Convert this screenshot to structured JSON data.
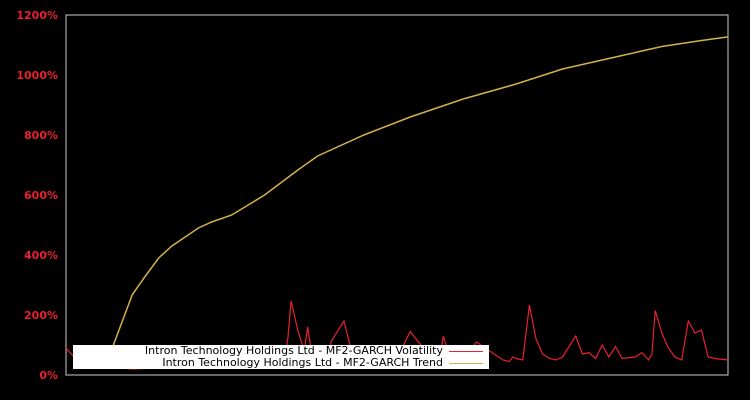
{
  "chart_data": {
    "type": "line",
    "title": "",
    "xlabel": "",
    "ylabel": "",
    "ylim": [
      0,
      1200
    ],
    "yticks": [
      "0%",
      "200%",
      "400%",
      "600%",
      "800%",
      "1000%",
      "1200%"
    ],
    "grid": false,
    "legend_position": "lower center",
    "background": "#000000",
    "axis_color": "#cccccc",
    "tick_label_color": "#e8202f",
    "series": [
      {
        "name": "Intron Technology Holdings Ltd - MF2-GARCH Volatility",
        "color": "#e8202f",
        "x": [
          0,
          0.02,
          0.05,
          0.1,
          0.15,
          0.2,
          0.25,
          0.3,
          0.33,
          0.335,
          0.34,
          0.35,
          0.36,
          0.365,
          0.37,
          0.38,
          0.39,
          0.4,
          0.4,
          0.42,
          0.43,
          0.44,
          0.45,
          0.47,
          0.48,
          0.49,
          0.5,
          0.52,
          0.55,
          0.56,
          0.565,
          0.57,
          0.58,
          0.59,
          0.6,
          0.62,
          0.66,
          0.67,
          0.675,
          0.68,
          0.69,
          0.7,
          0.71,
          0.72,
          0.73,
          0.74,
          0.75,
          0.77,
          0.78,
          0.79,
          0.8,
          0.81,
          0.82,
          0.83,
          0.84,
          0.86,
          0.87,
          0.88,
          0.885,
          0.89,
          0.9,
          0.91,
          0.92,
          0.93,
          0.94,
          0.95,
          0.96,
          0.97,
          0.98,
          1.0
        ],
        "values": [
          90,
          40,
          30,
          20,
          25,
          30,
          35,
          40,
          60,
          120,
          247,
          150,
          80,
          160,
          90,
          50,
          45,
          55,
          110,
          180,
          90,
          60,
          50,
          45,
          50,
          60,
          55,
          145,
          60,
          50,
          55,
          130,
          60,
          50,
          55,
          110,
          50,
          45,
          60,
          55,
          50,
          233,
          120,
          70,
          55,
          50,
          60,
          130,
          70,
          75,
          55,
          100,
          60,
          95,
          55,
          60,
          75,
          50,
          70,
          215,
          140,
          90,
          60,
          50,
          180,
          140,
          150,
          60,
          55,
          50
        ]
      },
      {
        "name": "Intron Technology Holdings Ltd - MF2-GARCH Trend",
        "color": "#d4b04a",
        "x": [
          0.07,
          0.08,
          0.1,
          0.12,
          0.14,
          0.16,
          0.2,
          0.22,
          0.25,
          0.3,
          0.35,
          0.38,
          0.45,
          0.52,
          0.6,
          0.68,
          0.75,
          0.83,
          0.9,
          0.96,
          1.0
        ],
        "values": [
          90,
          150,
          267,
          330,
          390,
          430,
          490,
          510,
          533,
          600,
          683,
          730,
          800,
          860,
          920,
          970,
          1020,
          1060,
          1095,
          1115,
          1127
        ]
      }
    ]
  },
  "legend": {
    "items": [
      {
        "label": "Intron Technology Holdings Ltd - MF2-GARCH Volatility",
        "color": "#e8202f"
      },
      {
        "label": "Intron Technology Holdings Ltd - MF2-GARCH Trend",
        "color": "#d4b04a"
      }
    ]
  }
}
